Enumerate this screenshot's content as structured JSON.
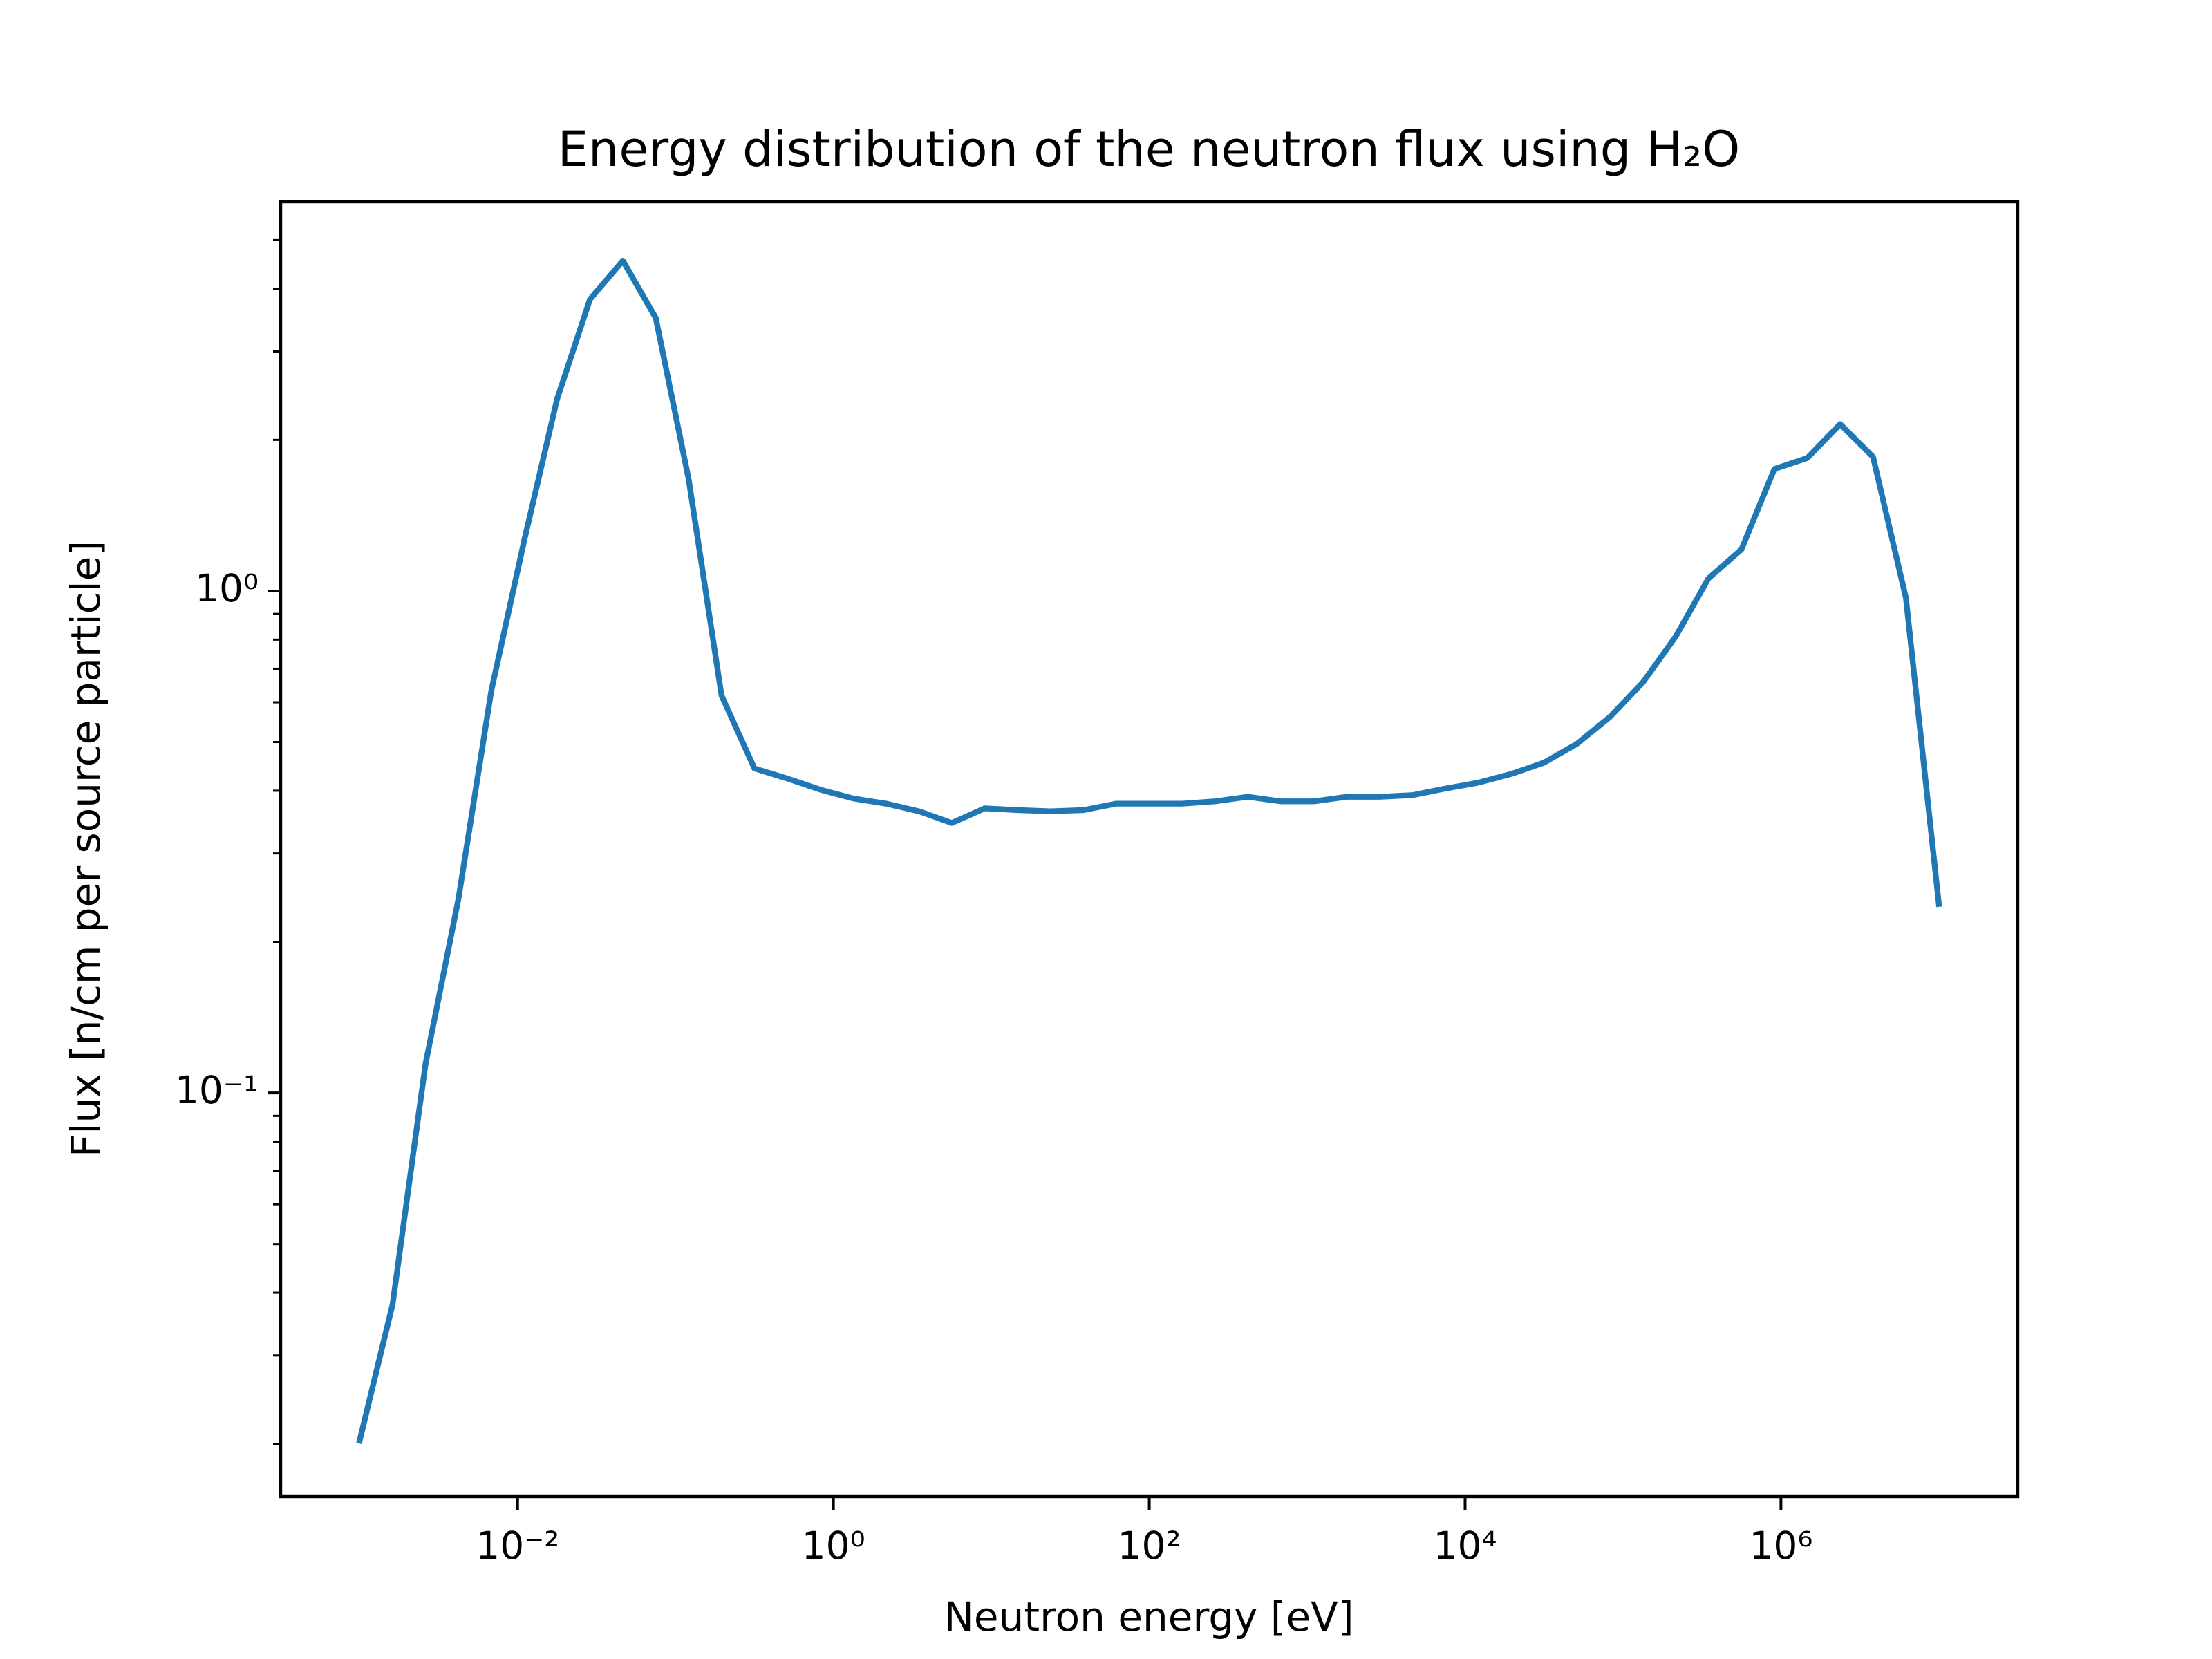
{
  "chart_data": {
    "type": "line",
    "title": "Energy distribution of the neutron flux using H₂O",
    "xlabel": "Neutron energy [eV]",
    "ylabel": "Flux [n/cm per source particle]",
    "xscale": "log",
    "yscale": "log",
    "xlim": [
      0.000316,
      31600000
    ],
    "ylim": [
      0.0157,
      5.96
    ],
    "xticks": [
      {
        "value": 0.01,
        "label": "10⁻²"
      },
      {
        "value": 1,
        "label": "10⁰"
      },
      {
        "value": 100,
        "label": "10²"
      },
      {
        "value": 10000,
        "label": "10⁴"
      },
      {
        "value": 1000000,
        "label": "10⁶"
      }
    ],
    "yticks": [
      {
        "value": 0.1,
        "label": "10⁻¹"
      },
      {
        "value": 1,
        "label": "10⁰"
      }
    ],
    "yminorticks": [
      0.02,
      0.03,
      0.04,
      0.05,
      0.06,
      0.07,
      0.08,
      0.09,
      0.2,
      0.3,
      0.4,
      0.5,
      0.6,
      0.7,
      0.8,
      0.9,
      2,
      3,
      4,
      5
    ],
    "series": [
      {
        "color": "#1f77b4",
        "x": [
          0.001,
          0.001616,
          0.00261,
          0.004217,
          0.006813,
          0.01101,
          0.01778,
          0.02873,
          0.04642,
          0.07499,
          0.1212,
          0.1957,
          0.3162,
          0.5109,
          0.8254,
          1.334,
          2.154,
          3.481,
          5.623,
          9.085,
          14.68,
          23.71,
          38.31,
          61.9,
          100,
          161.6,
          261,
          421.7,
          681.3,
          1101,
          1778,
          2873,
          4642,
          7499,
          12115,
          19573,
          31623,
          51090,
          82540,
          133352,
          215443,
          348070,
          562341,
          908518,
          1467799,
          2371374,
          3831187,
          6189658,
          10000000
        ],
        "values": [
          0.0203,
          0.0379,
          0.114,
          0.243,
          0.632,
          1.26,
          2.41,
          3.81,
          4.55,
          3.5,
          1.67,
          0.619,
          0.443,
          0.423,
          0.402,
          0.386,
          0.377,
          0.364,
          0.345,
          0.369,
          0.366,
          0.364,
          0.366,
          0.377,
          0.377,
          0.377,
          0.381,
          0.389,
          0.381,
          0.381,
          0.389,
          0.389,
          0.392,
          0.404,
          0.415,
          0.432,
          0.455,
          0.496,
          0.561,
          0.657,
          0.811,
          1.06,
          1.21,
          1.75,
          1.84,
          2.15,
          1.85,
          0.968,
          0.238
        ]
      }
    ]
  }
}
